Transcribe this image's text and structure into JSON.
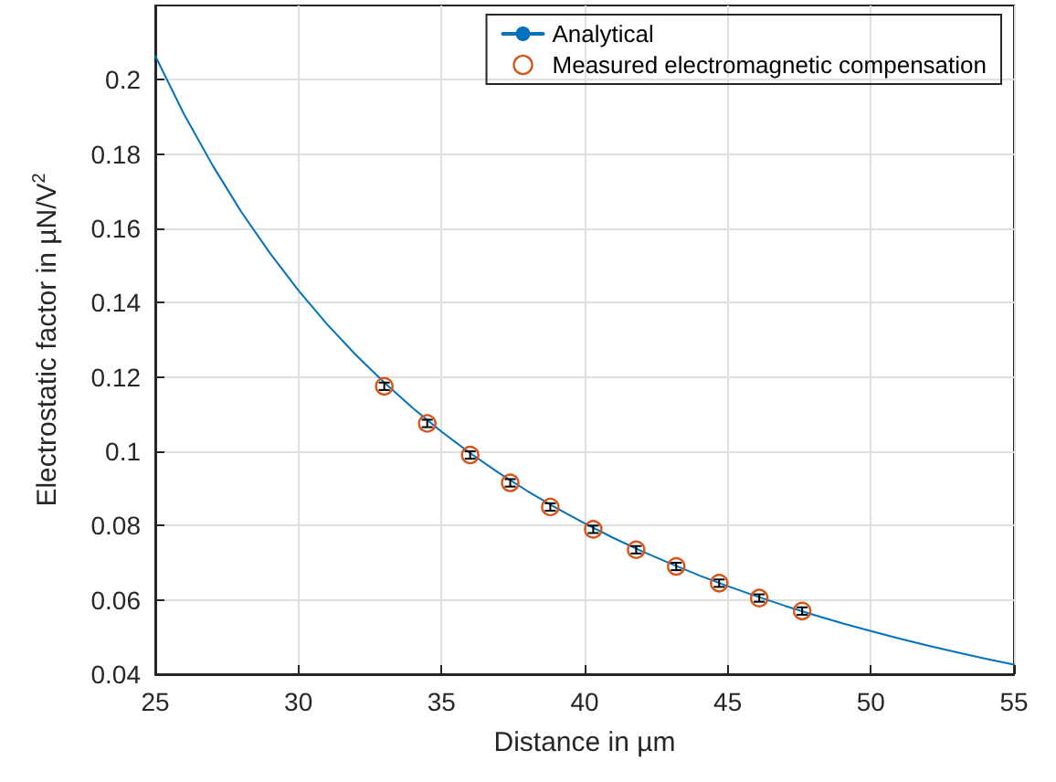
{
  "chart_data": {
    "type": "line",
    "xlabel": "Distance in µm",
    "ylabel": "Electrostatic factor in µN/V$^{2}$",
    "xlim": [
      25,
      55
    ],
    "xticks": [
      25,
      30,
      35,
      40,
      45,
      50,
      55
    ],
    "ylim": [
      0.04,
      0.22
    ],
    "yticks": [
      0.04,
      0.06,
      0.08,
      0.1,
      0.12,
      0.14,
      0.16,
      0.18,
      0.2
    ],
    "grid": true,
    "legend": "top right",
    "series": [
      {
        "name": "Analytical",
        "color": "#0072bd",
        "marker": "none",
        "line_style": "solid",
        "x": [
          25,
          26,
          27,
          28,
          29,
          30,
          31,
          32,
          33,
          34,
          35,
          36,
          37,
          38,
          39,
          40,
          41,
          42,
          43,
          44,
          45,
          46,
          47,
          48,
          49,
          50,
          51,
          52,
          53,
          54,
          55
        ],
        "values": [
          0.2064,
          0.1908,
          0.177,
          0.1645,
          0.1534,
          0.1433,
          0.1342,
          0.126,
          0.1185,
          0.1116,
          0.1053,
          0.0995,
          0.0942,
          0.0893,
          0.0848,
          0.0806,
          0.0767,
          0.0731,
          0.0698,
          0.0666,
          0.0637,
          0.061,
          0.0584,
          0.056,
          0.0537,
          0.0516,
          0.0496,
          0.0477,
          0.0459,
          0.0442,
          0.0426
        ]
      },
      {
        "name": "Measured electromagnetic compensation",
        "type": "scatter",
        "color": "#d95319",
        "marker": "circle",
        "x": [
          33,
          34.5,
          36,
          37.4,
          38.8,
          40.3,
          41.8,
          43.2,
          44.7,
          46.1,
          47.6
        ],
        "values": [
          0.1175,
          0.1075,
          0.099,
          0.0915,
          0.085,
          0.079,
          0.0735,
          0.069,
          0.0645,
          0.0605,
          0.057
        ],
        "errors": [
          0.001,
          0.001,
          0.001,
          0.001,
          0.001,
          0.001,
          0.001,
          0.001,
          0.001,
          0.001,
          0.001
        ]
      }
    ]
  }
}
